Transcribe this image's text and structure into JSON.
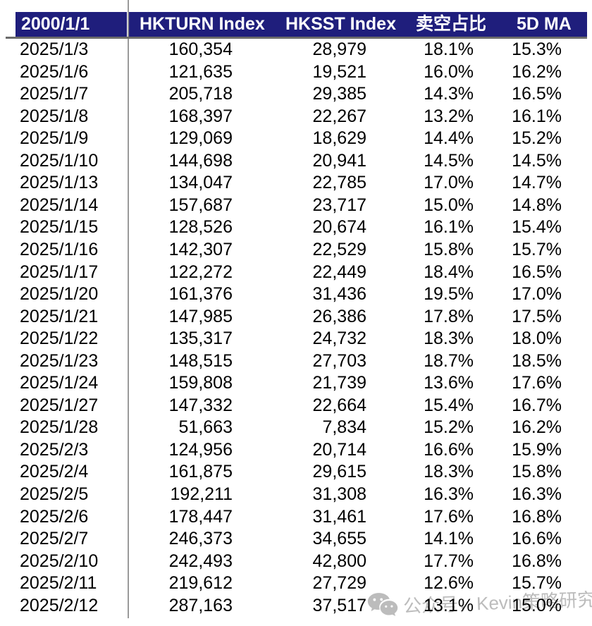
{
  "chart_data": {
    "type": "table",
    "title": "",
    "columns": [
      "2000/1/1",
      "HKTURN Index",
      "HKSST Index",
      "卖空占比",
      "5D MA"
    ],
    "rows": [
      [
        "2025/1/3",
        "160,354",
        "28,979",
        "18.1%",
        "15.3%"
      ],
      [
        "2025/1/6",
        "121,635",
        "19,521",
        "16.0%",
        "16.2%"
      ],
      [
        "2025/1/7",
        "205,718",
        "29,385",
        "14.3%",
        "16.5%"
      ],
      [
        "2025/1/8",
        "168,397",
        "22,267",
        "13.2%",
        "16.1%"
      ],
      [
        "2025/1/9",
        "129,069",
        "18,629",
        "14.4%",
        "15.2%"
      ],
      [
        "2025/1/10",
        "144,698",
        "20,941",
        "14.5%",
        "14.5%"
      ],
      [
        "2025/1/13",
        "134,047",
        "22,785",
        "17.0%",
        "14.7%"
      ],
      [
        "2025/1/14",
        "157,687",
        "23,717",
        "15.0%",
        "14.8%"
      ],
      [
        "2025/1/15",
        "128,526",
        "20,674",
        "16.1%",
        "15.4%"
      ],
      [
        "2025/1/16",
        "142,307",
        "22,529",
        "15.8%",
        "15.7%"
      ],
      [
        "2025/1/17",
        "122,272",
        "22,449",
        "18.4%",
        "16.5%"
      ],
      [
        "2025/1/20",
        "161,376",
        "31,436",
        "19.5%",
        "17.0%"
      ],
      [
        "2025/1/21",
        "147,985",
        "26,386",
        "17.8%",
        "17.5%"
      ],
      [
        "2025/1/22",
        "135,317",
        "24,732",
        "18.3%",
        "18.0%"
      ],
      [
        "2025/1/23",
        "148,515",
        "27,703",
        "18.7%",
        "18.5%"
      ],
      [
        "2025/1/24",
        "159,808",
        "21,739",
        "13.6%",
        "17.6%"
      ],
      [
        "2025/1/27",
        "147,332",
        "22,664",
        "15.4%",
        "16.7%"
      ],
      [
        "2025/1/28",
        "51,663",
        "7,834",
        "15.2%",
        "16.2%"
      ],
      [
        "2025/2/3",
        "124,956",
        "20,714",
        "16.6%",
        "15.9%"
      ],
      [
        "2025/2/4",
        "161,875",
        "29,615",
        "18.3%",
        "15.8%"
      ],
      [
        "2025/2/5",
        "192,211",
        "31,308",
        "16.3%",
        "16.3%"
      ],
      [
        "2025/2/6",
        "178,447",
        "31,461",
        "17.6%",
        "16.8%"
      ],
      [
        "2025/2/7",
        "246,373",
        "34,655",
        "14.1%",
        "16.6%"
      ],
      [
        "2025/2/10",
        "242,493",
        "42,800",
        "17.7%",
        "16.8%"
      ],
      [
        "2025/2/11",
        "219,612",
        "27,729",
        "12.6%",
        "15.7%"
      ],
      [
        "2025/2/12",
        "287,163",
        "37,517",
        "13.1%",
        "15.0%"
      ]
    ]
  },
  "table": {
    "columns": [
      {
        "key": "date",
        "align": "left"
      },
      {
        "key": "hkturn",
        "align": "right"
      },
      {
        "key": "hksst",
        "align": "right"
      },
      {
        "key": "short_ratio",
        "align": "right"
      },
      {
        "key": "ma5",
        "align": "right"
      }
    ]
  },
  "watermark": {
    "icon": "wechat-icon",
    "text": "公众号，Kevin策略研究"
  },
  "colors": {
    "header_bg": "#1f1e7c",
    "header_text": "#ffffff",
    "body_text": "#000000",
    "grid_line": "#9a9a9a",
    "header_rule": "#6b6b6b",
    "watermark": "#b5b5b5"
  }
}
